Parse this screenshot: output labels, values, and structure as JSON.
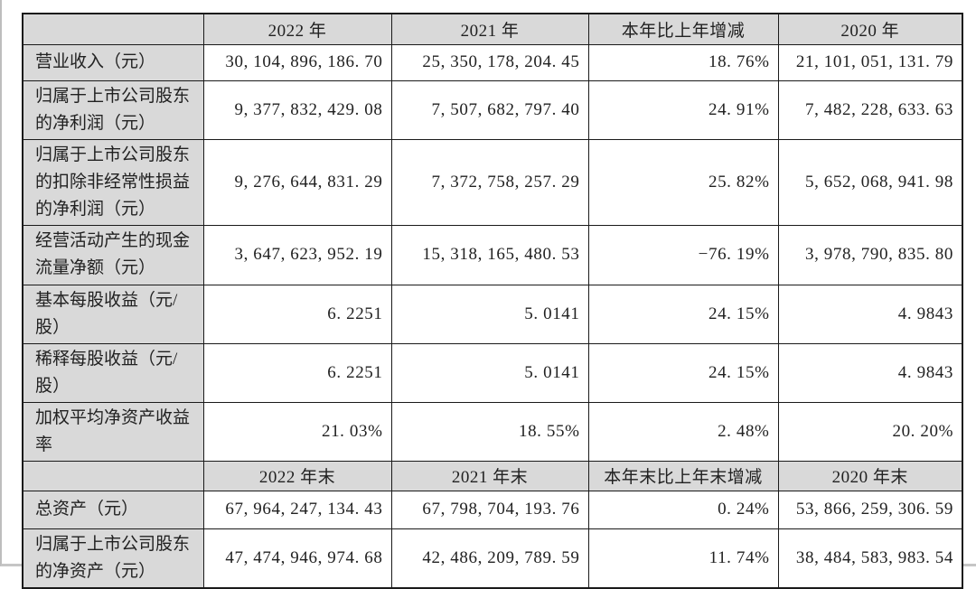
{
  "colors": {
    "header_fill": "#d9d9d9",
    "border": "#1a1a1a",
    "text": "#212121",
    "page_bg": "#ffffff"
  },
  "table": {
    "sections": [
      {
        "header": [
          "",
          "2022 年",
          "2021 年",
          "本年比上年增减",
          "2020 年"
        ],
        "rows": [
          {
            "label": "营业收入（元）",
            "values": [
              "30, 104, 896, 186. 70",
              "25, 350, 178, 204. 45",
              "18. 76%",
              "21, 101, 051, 131. 79"
            ]
          },
          {
            "label": "归属于上市公司股东的净利润（元）",
            "values": [
              "9, 377, 832, 429. 08",
              "7, 507, 682, 797. 40",
              "24. 91%",
              "7, 482, 228, 633. 63"
            ]
          },
          {
            "label": "归属于上市公司股东的扣除非经常性损益的净利润（元）",
            "values": [
              "9, 276, 644, 831. 29",
              "7, 372, 758, 257. 29",
              "25. 82%",
              "5, 652, 068, 941. 98"
            ]
          },
          {
            "label": "经营活动产生的现金流量净额（元）",
            "values": [
              "3, 647, 623, 952. 19",
              "15, 318, 165, 480. 53",
              "−76. 19%",
              "3, 978, 790, 835. 80"
            ]
          },
          {
            "label": "基本每股收益（元/股）",
            "values": [
              "6. 2251",
              "5. 0141",
              "24. 15%",
              "4. 9843"
            ]
          },
          {
            "label": "稀释每股收益（元/股）",
            "values": [
              "6. 2251",
              "5. 0141",
              "24. 15%",
              "4. 9843"
            ]
          },
          {
            "label": "加权平均净资产收益率",
            "values": [
              "21. 03%",
              "18. 55%",
              "2. 48%",
              "20. 20%"
            ]
          }
        ]
      },
      {
        "header": [
          "",
          "2022 年末",
          "2021 年末",
          "本年末比上年末增减",
          "2020 年末"
        ],
        "rows": [
          {
            "label": "总资产（元）",
            "values": [
              "67, 964, 247, 134. 43",
              "67, 798, 704, 193. 76",
              "0. 24%",
              "53, 866, 259, 306. 59"
            ]
          },
          {
            "label": "归属于上市公司股东的净资产（元）",
            "values": [
              "47, 474, 946, 974. 68",
              "42, 486, 209, 789. 59",
              "11. 74%",
              "38, 484, 583, 983. 54"
            ]
          }
        ]
      }
    ]
  }
}
